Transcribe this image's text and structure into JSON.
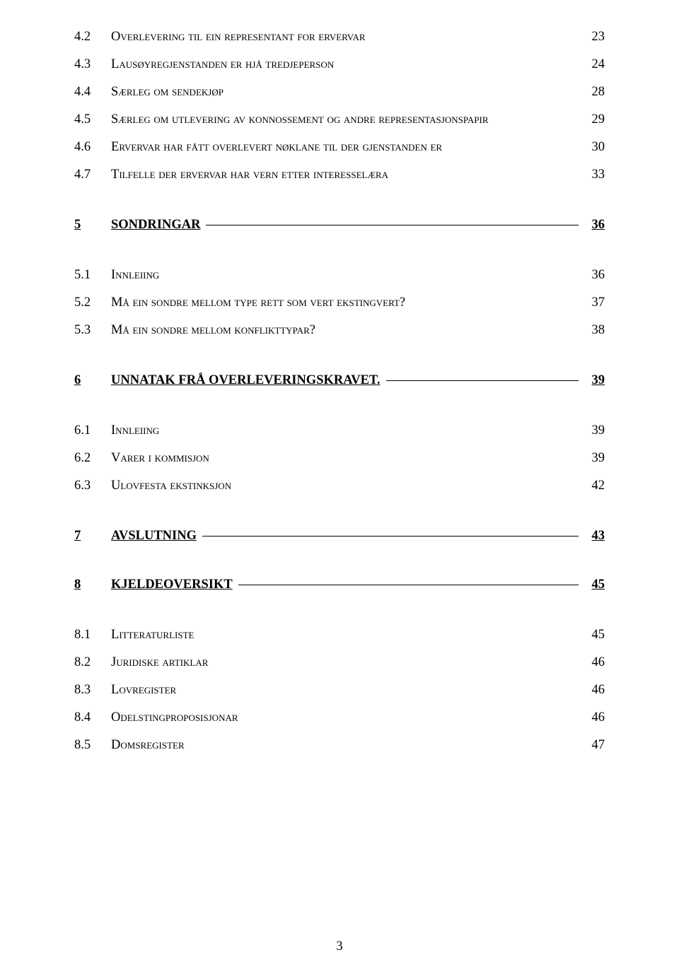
{
  "toc": {
    "group1": [
      {
        "num": "4.2",
        "title_first": "O",
        "title_rest": "verlevering til ein representant for ervervar",
        "page": "23"
      },
      {
        "num": "4.3",
        "title_first": "L",
        "title_rest": "ausøyregjenstanden er hjå tredjeperson",
        "page": "24"
      },
      {
        "num": "4.4",
        "title_first": "S",
        "title_rest": "ærleg om sendekjøp",
        "page": "28"
      },
      {
        "num": "4.5",
        "title_first": "S",
        "title_rest": "ærleg om utlevering av konnossement og andre representasjonspapir",
        "page": "29"
      },
      {
        "num": "4.6",
        "title_first": "E",
        "title_rest": "rvervar har fått overlevert nøklane til der gjenstanden er",
        "page": "30"
      },
      {
        "num": "4.7",
        "title_first": "T",
        "title_rest": "ilfelle der ervervar har vern etter interesselæra",
        "page": "33"
      }
    ],
    "section5": {
      "num": "5",
      "title": "SONDRINGAR",
      "page": "36"
    },
    "group5": [
      {
        "num": "5.1",
        "title_first": "I",
        "title_rest": "nnleiing",
        "page": "36"
      },
      {
        "num": "5.2",
        "title_first": "M",
        "title_rest": "å ein sondre mellom type rett som vert ekstingvert?",
        "page": "37"
      },
      {
        "num": "5.3",
        "title_first": "M",
        "title_rest": "å ein sondre mellom konflikttypar?",
        "page": "38"
      }
    ],
    "section6": {
      "num": "6",
      "title": "UNNATAK FRÅ OVERLEVERINGSKRAVET.",
      "page": "39"
    },
    "group6": [
      {
        "num": "6.1",
        "title_first": "I",
        "title_rest": "nnleiing",
        "page": "39"
      },
      {
        "num": "6.2",
        "title_first": "V",
        "title_rest": "arer i kommisjon",
        "page": "39"
      },
      {
        "num": "6.3",
        "title_first": "U",
        "title_rest": "lovfesta ekstinksjon",
        "page": "42"
      }
    ],
    "section7": {
      "num": "7",
      "title": "AVSLUTNING",
      "page": "43"
    },
    "section8": {
      "num": "8",
      "title": "KJELDEOVERSIKT",
      "page": "45"
    },
    "group8": [
      {
        "num": "8.1",
        "title_first": "L",
        "title_rest": "itteraturliste",
        "page": "45"
      },
      {
        "num": "8.2",
        "title_first": "J",
        "title_rest": "uridiske artiklar",
        "page": "46"
      },
      {
        "num": "8.3",
        "title_first": "L",
        "title_rest": "ovregister",
        "page": "46"
      },
      {
        "num": "8.4",
        "title_first": "O",
        "title_rest": "delstingproposisjonar",
        "page": "46"
      },
      {
        "num": "8.5",
        "title_first": "D",
        "title_rest": "omsregister",
        "page": "47"
      }
    ]
  },
  "page_number": "3"
}
